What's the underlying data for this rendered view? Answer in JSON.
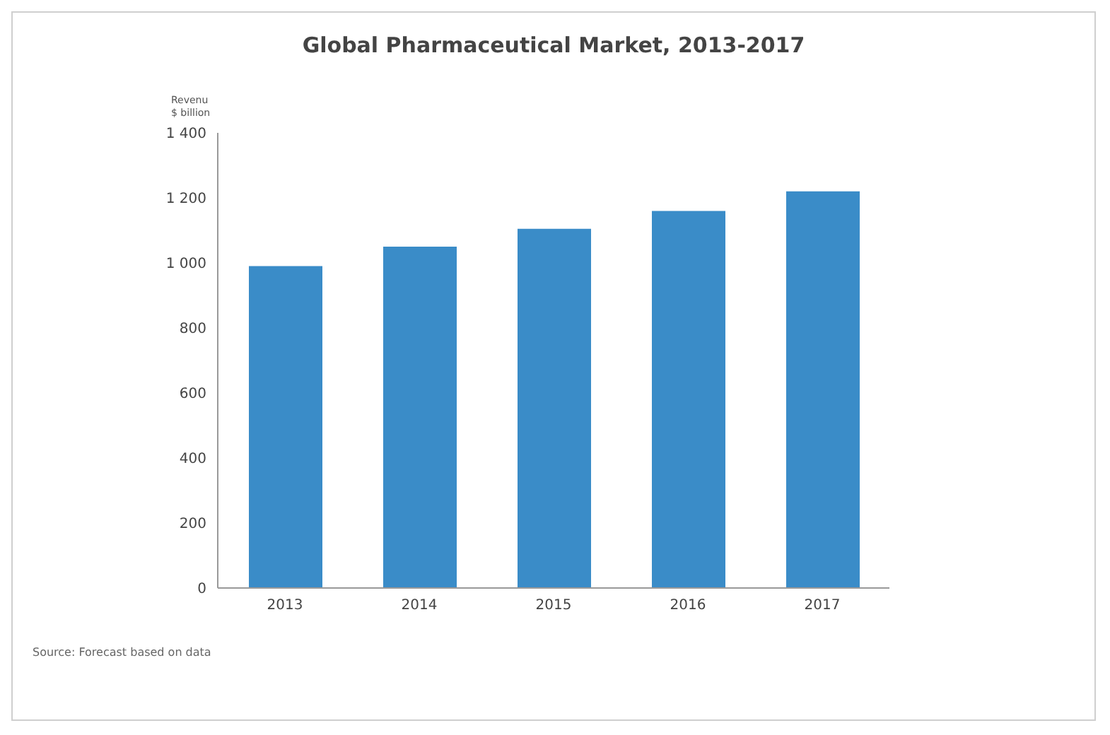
{
  "chart_data": {
    "type": "bar",
    "title": "Global Pharmaceutical Market, 2013-2017",
    "ylabel": "Revenu\n$ billion",
    "categories": [
      "2013",
      "2014",
      "2015",
      "2016",
      "2017"
    ],
    "values": [
      990,
      1050,
      1105,
      1160,
      1220
    ],
    "color": "#3a8cc8",
    "ylim": [
      0,
      1400
    ],
    "yticks": [
      0,
      200,
      400,
      600,
      800,
      {
        "value": 1000,
        "label": "1 000"
      },
      {
        "value": 1200,
        "label": "1 200"
      },
      {
        "value": 1400,
        "label": "1 400"
      }
    ],
    "grid": false,
    "annotations": [
      "Source: Forecast based on data"
    ]
  }
}
